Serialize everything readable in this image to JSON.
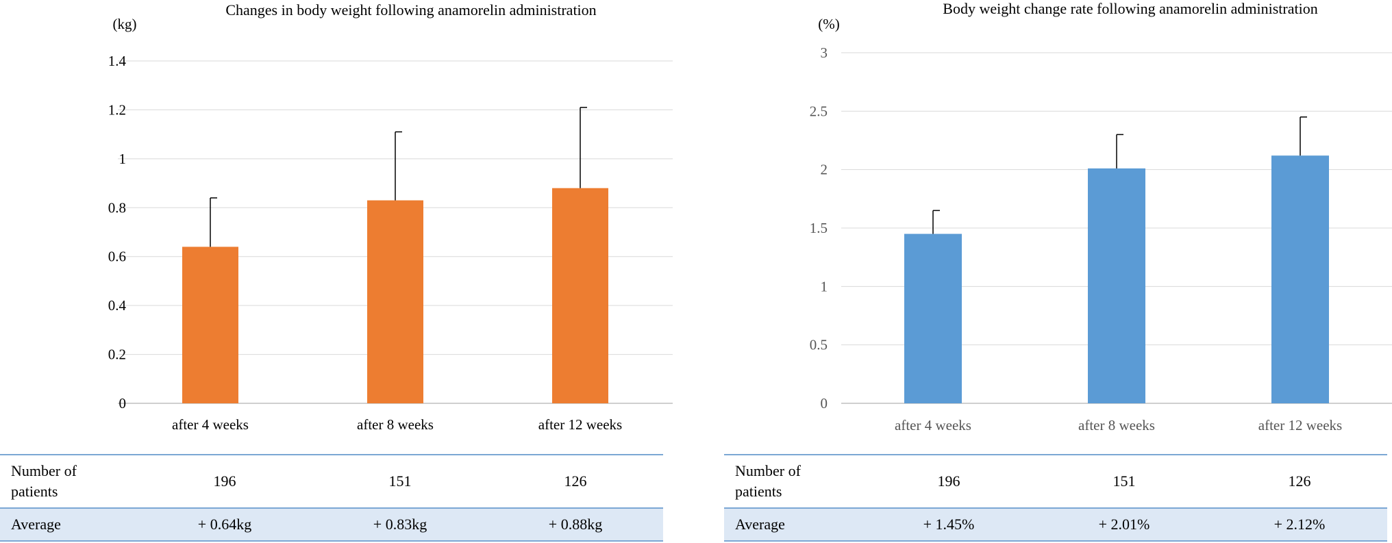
{
  "chart_data": [
    {
      "type": "bar",
      "title": "Changes in body weight following anamorelin administration",
      "ylabel": "(kg)",
      "categories": [
        "after 4 weeks",
        "after 8 weeks",
        "after 12 weeks"
      ],
      "values": [
        0.64,
        0.83,
        0.88
      ],
      "error_upper": [
        0.84,
        1.11,
        1.21
      ],
      "ylim": [
        0,
        1.4
      ],
      "yticks": [
        "0",
        "0.2",
        "0.4",
        "0.6",
        "0.8",
        "1",
        "1.2",
        "1.4"
      ],
      "grid": true,
      "color": "#ed7d31",
      "table": {
        "row_n_label": "Number of patients",
        "n": [
          "196",
          "151",
          "126"
        ],
        "row_avg_label": "Average",
        "avg": [
          "+ 0.64kg",
          "+ 0.83kg",
          "+ 0.88kg"
        ]
      }
    },
    {
      "type": "bar",
      "title": "Body weight change rate following anamorelin administration",
      "ylabel": "(%)",
      "categories": [
        "after 4 weeks",
        "after 8 weeks",
        "after 12 weeks"
      ],
      "values": [
        1.45,
        2.01,
        2.12
      ],
      "error_upper": [
        1.65,
        2.3,
        2.45
      ],
      "ylim": [
        0,
        3
      ],
      "yticks": [
        "0",
        "0.5",
        "1",
        "1.5",
        "2",
        "2.5",
        "3"
      ],
      "grid": true,
      "color": "#5b9bd5",
      "table": {
        "row_n_label": "Number of patients",
        "n": [
          "196",
          "151",
          "126"
        ],
        "row_avg_label": "Average",
        "avg": [
          "+ 1.45%",
          "+ 2.01%",
          "+ 2.12%"
        ]
      }
    }
  ]
}
